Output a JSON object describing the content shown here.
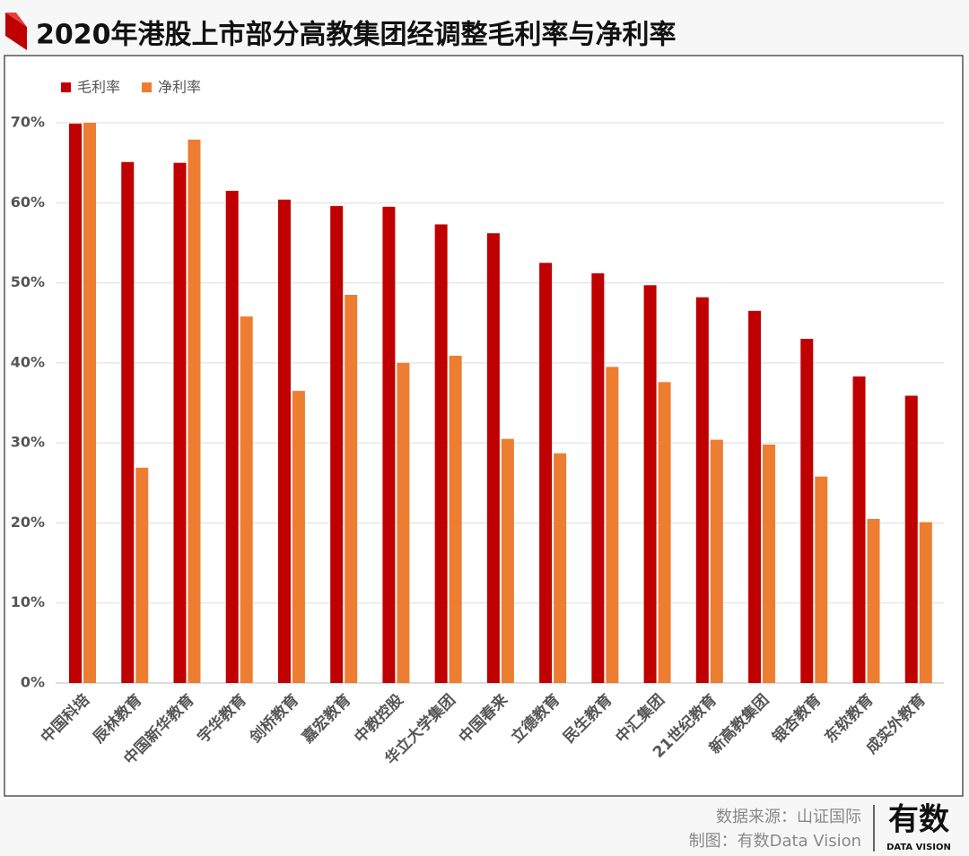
{
  "chart_data": {
    "type": "bar",
    "title": "2020年港股上市部分高教集团经调整毛利率与净利率",
    "categories": [
      "中国科培",
      "辰林教育",
      "中国新华教育",
      "宇华教育",
      "剑桥教育",
      "嘉宏教育",
      "中教控股",
      "华立大学集团",
      "中国春来",
      "立德教育",
      "民生教育",
      "中汇集团",
      "21世纪教育",
      "新高教集团",
      "银杏教育",
      "东软教育",
      "成实外教育"
    ],
    "series": [
      {
        "name": "毛利率",
        "color": "#c00000",
        "values": [
          69.9,
          65.1,
          65.0,
          61.5,
          60.4,
          59.6,
          59.5,
          57.3,
          56.2,
          52.5,
          51.2,
          49.7,
          48.2,
          46.5,
          43.0,
          38.3,
          35.9
        ]
      },
      {
        "name": "净利率",
        "color": "#ed7d31",
        "values": [
          70.0,
          26.9,
          67.9,
          45.8,
          36.5,
          48.5,
          40.0,
          40.9,
          30.5,
          28.7,
          39.5,
          37.6,
          30.4,
          29.8,
          25.8,
          20.5,
          20.1
        ]
      }
    ],
    "ylim": [
      0,
      70
    ],
    "yticks": [
      {
        "value": 0,
        "label": "0%"
      },
      {
        "value": 10,
        "label": "10%"
      },
      {
        "value": 20,
        "label": "20%"
      },
      {
        "value": 30,
        "label": "30%"
      },
      {
        "value": 40,
        "label": "40%"
      },
      {
        "value": 50,
        "label": "50%"
      },
      {
        "value": 60,
        "label": "60%"
      },
      {
        "value": 70,
        "label": "70%"
      }
    ],
    "grid": true,
    "legend": "top-left"
  },
  "footer": {
    "source": "数据来源：山证国际",
    "credit": "制图：有数Data Vision",
    "logo": "有数",
    "logo_sub": "DATA VISION"
  }
}
